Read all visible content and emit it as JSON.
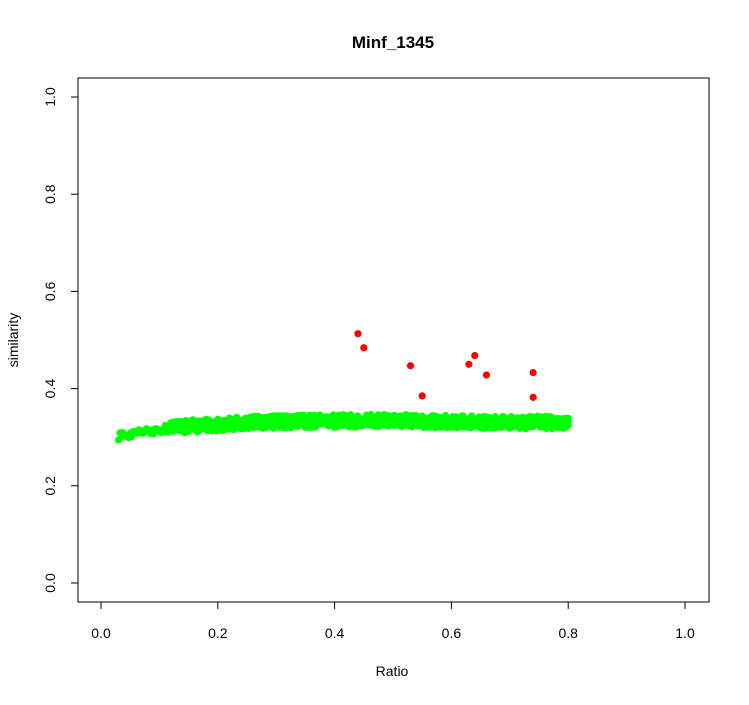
{
  "chart_data": {
    "type": "scatter",
    "title": "Minf_1345",
    "xlabel": "Ratio",
    "ylabel": "similarity",
    "xlim": [
      0.0,
      1.0
    ],
    "ylim": [
      0.0,
      1.0
    ],
    "x_ticks": [
      {
        "value": 0.0,
        "label": "0.0"
      },
      {
        "value": 0.2,
        "label": "0.2"
      },
      {
        "value": 0.4,
        "label": "0.4"
      },
      {
        "value": 0.6,
        "label": "0.6"
      },
      {
        "value": 0.8,
        "label": "0.8"
      },
      {
        "value": 1.0,
        "label": "1.0"
      }
    ],
    "y_ticks": [
      {
        "value": 0.0,
        "label": "0.0"
      },
      {
        "value": 0.2,
        "label": "0.2"
      },
      {
        "value": 0.4,
        "label": "0.4"
      },
      {
        "value": 0.6,
        "label": "0.6"
      },
      {
        "value": 0.8,
        "label": "0.8"
      },
      {
        "value": 1.0,
        "label": "1.0"
      }
    ],
    "grid": false,
    "legend": "none",
    "series": [
      {
        "color": "#00ff00",
        "x_start": 0.03,
        "x_end": 0.8,
        "x_step": 0.0025,
        "y_band": [
          {
            "x": 0.03,
            "y": 0.302
          },
          {
            "x": 0.06,
            "y": 0.308
          },
          {
            "x": 0.1,
            "y": 0.315
          },
          {
            "x": 0.15,
            "y": 0.323
          },
          {
            "x": 0.2,
            "y": 0.326
          },
          {
            "x": 0.25,
            "y": 0.33
          },
          {
            "x": 0.35,
            "y": 0.333
          },
          {
            "x": 0.5,
            "y": 0.334
          },
          {
            "x": 0.65,
            "y": 0.331
          },
          {
            "x": 0.8,
            "y": 0.33
          }
        ],
        "y_spread": 0.013
      },
      {
        "color": "#ff0000",
        "points": [
          {
            "x": 0.44,
            "y": 0.513
          },
          {
            "x": 0.45,
            "y": 0.484
          },
          {
            "x": 0.53,
            "y": 0.447
          },
          {
            "x": 0.55,
            "y": 0.385
          },
          {
            "x": 0.63,
            "y": 0.45
          },
          {
            "x": 0.64,
            "y": 0.468
          },
          {
            "x": 0.66,
            "y": 0.428
          },
          {
            "x": 0.74,
            "y": 0.433
          },
          {
            "x": 0.74,
            "y": 0.382
          }
        ]
      }
    ]
  }
}
